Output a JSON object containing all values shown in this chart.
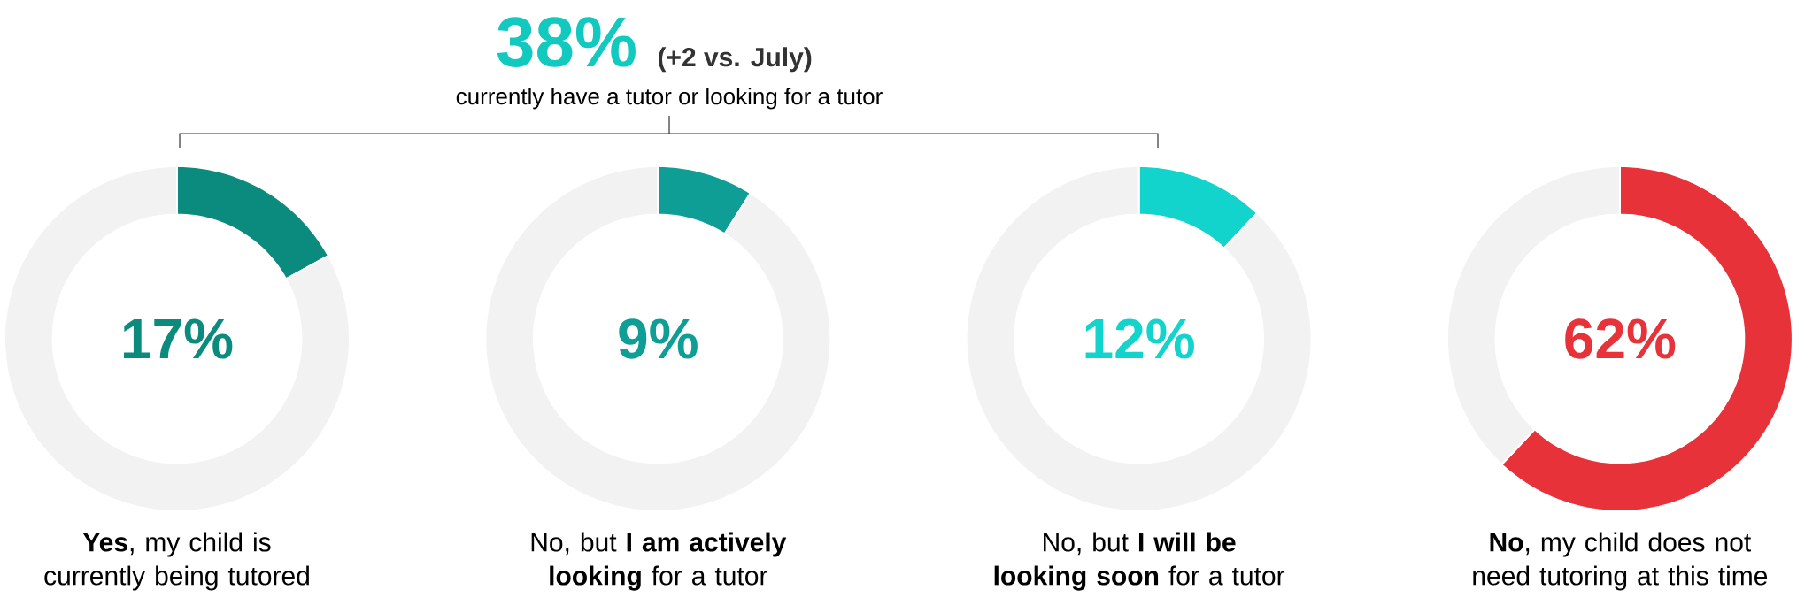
{
  "chart_data": [
    {
      "type": "other",
      "title": "38%",
      "subtitle": "(+2 vs. July)",
      "annotations": [
        "currently have a tutor or looking for a tutor"
      ]
    },
    {
      "type": "donut",
      "xlabel": "**Yes**, my child is currently being tutored",
      "categories": [
        null,
        null
      ],
      "values": [
        17,
        83
      ],
      "colors": [
        "#0b8a7e",
        "#f2f2f2"
      ],
      "annotations": [
        "17%"
      ]
    },
    {
      "type": "donut",
      "xlabel": "No, but **I am actively looking** for a tutor",
      "categories": [
        null,
        null
      ],
      "values": [
        9,
        91
      ],
      "colors": [
        "#0e9e96",
        "#f2f2f2"
      ],
      "annotations": [
        "9%"
      ]
    },
    {
      "type": "donut",
      "xlabel": "No, but **I will be looking soon** for a tutor",
      "categories": [
        null,
        null
      ],
      "values": [
        12,
        88
      ],
      "colors": [
        "#12d4cc",
        "#f2f2f2"
      ],
      "annotations": [
        "12%"
      ]
    },
    {
      "type": "donut",
      "xlabel": "**No**, my child does not need tutoring at this time",
      "categories": [
        null,
        null
      ],
      "values": [
        62,
        38
      ],
      "colors": [
        "#e8323a",
        "#f2f2f2"
      ],
      "annotations": [
        "62%"
      ]
    }
  ]
}
